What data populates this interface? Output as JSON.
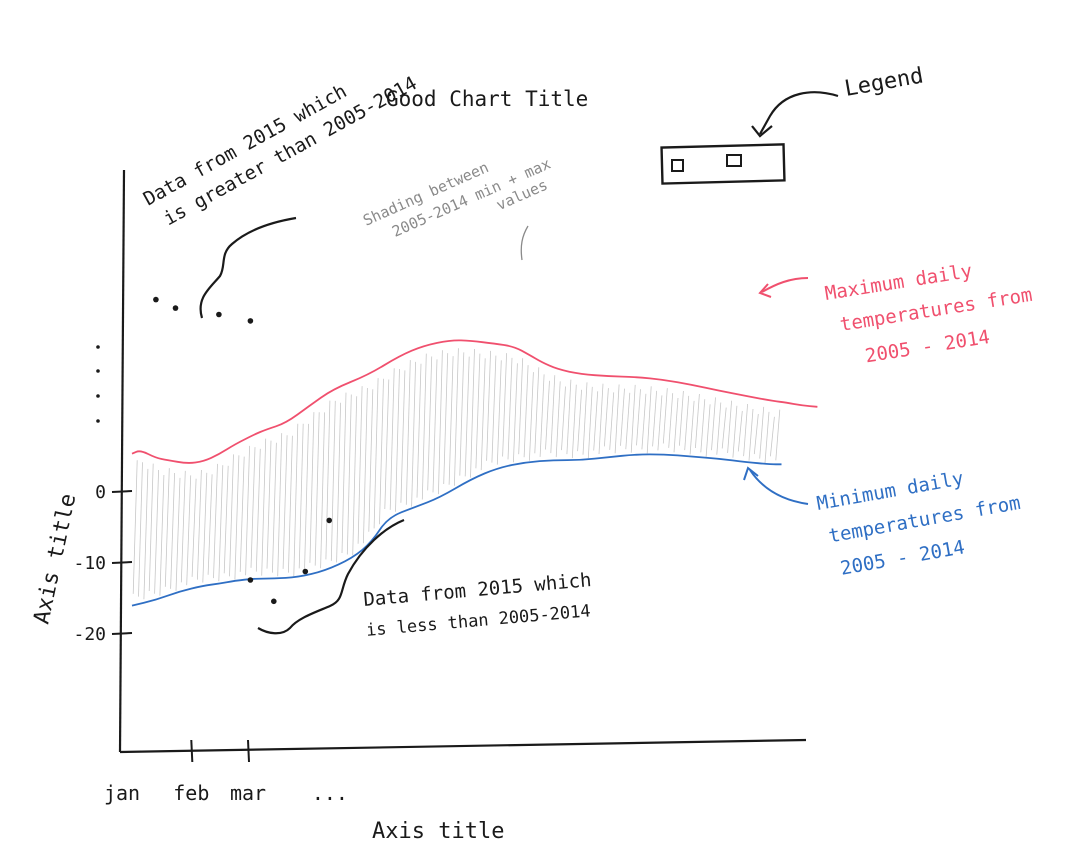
{
  "chart_data": {
    "type": "area",
    "title": "Good Chart Title",
    "xlabel": "Axis title",
    "ylabel": "Axis title",
    "x_ticks": [
      "jan",
      "feb",
      "mar",
      "..."
    ],
    "y_ticks": [
      {
        "value": 0,
        "label": "0"
      },
      {
        "value": -10,
        "label": "-10"
      },
      {
        "value": -20,
        "label": "-20"
      }
    ],
    "ylim": [
      -36,
      24
    ],
    "series": [
      {
        "name": "Maximum daily temperatures from 2005-2014",
        "color": "#f0506e",
        "x": [
          0,
          0.13,
          0.38,
          0.56,
          0.88,
          1.13,
          1.38,
          1.63,
          1.94,
          2.13,
          2.44,
          2.81,
          3.19,
          3.75,
          4.25,
          4.63,
          5.06,
          5.38,
          5.75,
          6.06,
          6.31,
          6.5,
          6.75,
          7.13,
          7.56,
          8.0,
          8.44,
          8.88,
          9.31,
          9.75,
          10.19,
          10.38,
          10.63,
          10.88
        ],
        "values": [
          5.4,
          5.9,
          4.8,
          4.5,
          4.0,
          4.3,
          5.3,
          6.7,
          8.1,
          8.8,
          9.7,
          12.1,
          14.5,
          16.5,
          19.2,
          20.6,
          21.4,
          21.3,
          20.9,
          20.5,
          19.3,
          18.3,
          17.3,
          16.6,
          16.3,
          16.2,
          15.8,
          15.1,
          14.3,
          13.5,
          12.8,
          12.6,
          12.2,
          12.0
        ]
      },
      {
        "name": "Minimum daily temperatures from 2005-2014",
        "color": "#2f6fc4",
        "x": [
          0,
          0.38,
          0.75,
          1.13,
          1.38,
          1.63,
          1.94,
          2.25,
          2.63,
          3.06,
          3.5,
          3.81,
          4.06,
          4.5,
          4.88,
          5.38,
          5.81,
          6.25,
          6.69,
          7.13,
          7.56,
          8.0,
          8.44,
          8.88,
          9.31,
          9.75,
          10.13,
          10.31
        ],
        "values": [
          -16.0,
          -15.2,
          -14.0,
          -13.2,
          -12.9,
          -12.5,
          -12.2,
          -12.2,
          -12.0,
          -11.1,
          -9.3,
          -7.0,
          -3.6,
          -2.1,
          -0.8,
          1.8,
          3.4,
          4.2,
          4.5,
          4.5,
          4.9,
          5.3,
          5.3,
          5.0,
          4.7,
          4.2,
          3.9,
          3.9
        ]
      }
    ],
    "scatter_above": {
      "name": "Data from 2015 which is greater than 2005-2014",
      "x": [
        0.38,
        0.69,
        1.38,
        1.88
      ],
      "values": [
        27.1,
        25.9,
        25.0,
        24.1
      ]
    },
    "scatter_below": {
      "name": "Data from 2015 which is less than 2005-2014",
      "x": [
        1.88,
        2.25,
        2.75,
        3.13
      ],
      "values": [
        -12.4,
        -15.4,
        -11.2,
        -4.0
      ]
    },
    "legend": {
      "label": "Legend",
      "placement": "top-right"
    }
  },
  "annotations": {
    "shading": [
      "Shading between",
      "2005-2014 min + max",
      "values"
    ],
    "max_label": [
      "Maximum daily",
      "temperatures from",
      "2005 - 2014"
    ],
    "min_label": [
      "Minimum daily",
      "temperatures from",
      "2005 - 2014"
    ],
    "above_label": [
      "Data from 2015 which",
      "is greater than 2005-2014"
    ],
    "below_label": [
      "Data from 2015 which",
      "is less than 2005-2014"
    ]
  },
  "colors": {
    "ink": "#1a1a1a",
    "max_line": "#f0506e",
    "min_line": "#2f6fc4",
    "shading": "#9a9a9a"
  }
}
